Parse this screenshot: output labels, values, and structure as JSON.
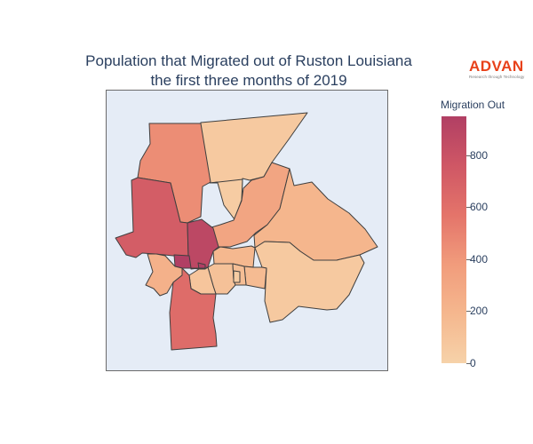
{
  "title_lines": [
    "Population that Migrated out of Ruston Louisiana",
    "the first three months of 2019"
  ],
  "logo": {
    "word": "ADVAN",
    "tagline": "Research through Technology"
  },
  "legend": {
    "title": "Migration Out",
    "ticks": [
      "0",
      "200",
      "400",
      "600",
      "800"
    ],
    "range": [
      0,
      950
    ],
    "colorscale": [
      "#f6d2a9",
      "#f5b78e",
      "#f19c7c",
      "#e4746a",
      "#cf5765",
      "#b13f64"
    ]
  },
  "map_style": {
    "background": "#e5ecf6",
    "boundary_color": "#3f3f3f"
  },
  "chart_data": {
    "type": "choropleth",
    "colorbar_label": "Migration Out",
    "colorbar_range": [
      0,
      950
    ],
    "regions": [
      {
        "id": "north-central",
        "value": 60
      },
      {
        "id": "northwest",
        "value": 450
      },
      {
        "id": "north-small",
        "value": 40
      },
      {
        "id": "north-northeast",
        "value": 320
      },
      {
        "id": "west-large",
        "value": 720
      },
      {
        "id": "central-tall",
        "value": 880
      },
      {
        "id": "center-stub",
        "value": 950
      },
      {
        "id": "east-upper",
        "value": 200
      },
      {
        "id": "east-lower",
        "value": 60
      },
      {
        "id": "center-east-1",
        "value": 180
      },
      {
        "id": "center-east-2",
        "value": 160
      },
      {
        "id": "center-small-a",
        "value": 120
      },
      {
        "id": "center-small-b",
        "value": 90
      },
      {
        "id": "center-small-c",
        "value": 140
      },
      {
        "id": "center-small-d",
        "value": 40
      },
      {
        "id": "southwest-small",
        "value": 230
      },
      {
        "id": "south",
        "value": 620
      }
    ]
  }
}
